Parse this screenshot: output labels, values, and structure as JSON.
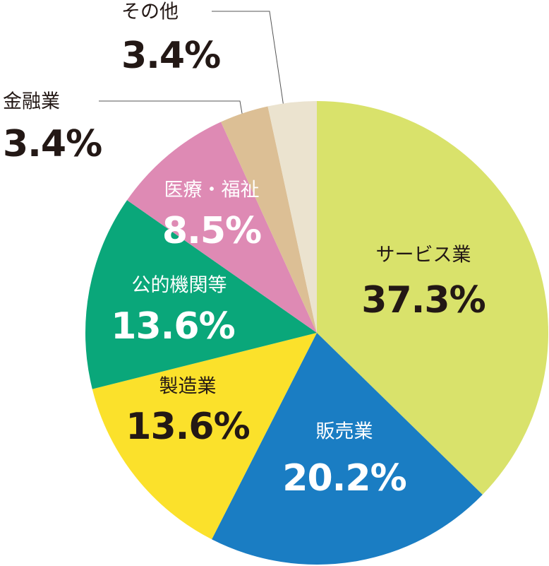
{
  "chart_data": {
    "type": "pie",
    "categories": [
      "サービス業",
      "販売業",
      "製造業",
      "公的機関等",
      "医療・福祉",
      "金融業",
      "その他"
    ],
    "values": [
      37.3,
      20.2,
      13.6,
      13.6,
      8.5,
      3.4,
      3.4
    ],
    "value_labels": [
      "37.3%",
      "20.2%",
      "13.6%",
      "13.6%",
      "8.5%",
      "3.4%",
      "3.4%"
    ],
    "colors": [
      "#d9e26b",
      "#1a7dc3",
      "#fbe12b",
      "#0aa77a",
      "#de8ab4",
      "#dcbf95",
      "#ebe3cf"
    ]
  }
}
